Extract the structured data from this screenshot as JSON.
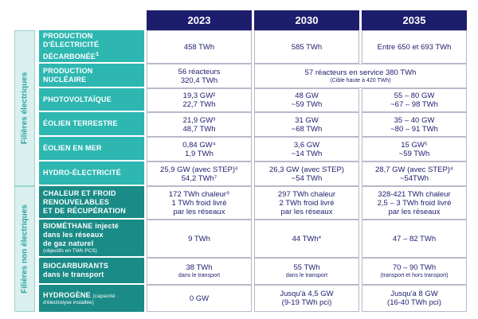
{
  "years": [
    "2023",
    "2030",
    "2035"
  ],
  "bands": {
    "elec": "Filières électriques",
    "nonelec": "Filières non électriques"
  },
  "rows": [
    {
      "label": [
        "PRODUCTION",
        "D'ÉLECTRICITÉ",
        "DÉCARBONÉE"
      ],
      "sup": "1",
      "c2023": [
        "458 TWh"
      ],
      "c2030": [
        "585 TWh"
      ],
      "c2035": [
        "Entre 650 et 693 TWh"
      ]
    },
    {
      "label": [
        "PRODUCTION",
        "NUCLÉAIRE"
      ],
      "c2023": [
        "56 réacteurs",
        "320,4 TWh"
      ],
      "span": [
        "57 réacteurs en service 380 TWh",
        "(Cible haute à 420 TWh)"
      ]
    },
    {
      "label": [
        "PHOTOVOLTAÏQUE"
      ],
      "c2023": [
        "19,3 GW²",
        "22,7 TWh"
      ],
      "c2030": [
        "48 GW",
        "~59 TWh"
      ],
      "c2035": [
        "55 – 80 GW",
        "~67 – 98 TWh"
      ]
    },
    {
      "label": [
        "ÉOLIEN TERRESTRE"
      ],
      "c2023": [
        "21,9 GW³",
        "48,7 TWh"
      ],
      "c2030": [
        "31 GW",
        "~68 TWh"
      ],
      "c2035": [
        "35 – 40 GW",
        "~80 – 91 TWh"
      ]
    },
    {
      "label": [
        "ÉOLIEN EN MER"
      ],
      "c2023": [
        "0,84 GW⁴",
        "1,9 TWh"
      ],
      "c2030": [
        "3,6 GW",
        "~14 TWh"
      ],
      "c2035": [
        "15 GW⁵",
        "~59 TWh"
      ]
    },
    {
      "label": [
        "HYDRO-ÉLECTRICITÉ"
      ],
      "c2023": [
        "25,9 GW (avec STEP)⁶",
        "54,2 TWh⁷"
      ],
      "c2030": [
        "26,3 GW (avec STEP)",
        "~54 TWh"
      ],
      "c2035": [
        "28,7 GW (avec STEP)⁸",
        "~54TWh"
      ]
    },
    {
      "label": [
        "CHALEUR ET FROID",
        "RENOUVELABLES",
        "ET DE RÉCUPÉRATION"
      ],
      "c2023": [
        "172 TWh chaleur⁹",
        "1 TWh froid livré",
        "par les réseaux"
      ],
      "c2030": [
        "297 TWh chaleur",
        "2 TWh froid livré",
        "par les réseaux"
      ],
      "c2035": [
        "328-421 TWh chaleur",
        "2,5 – 3 TWh froid livré",
        "par les réseaux"
      ]
    },
    {
      "label": [
        "BIOMÉTHANE injecté",
        "dans les réseaux",
        "de gaz naturel"
      ],
      "sub": "(objectifs en TWh PCS)",
      "c2023": [
        "9 TWh"
      ],
      "c2030": [
        "44 TWh*"
      ],
      "c2035": [
        "47 – 82 TWh"
      ]
    },
    {
      "label": [
        "BIOCARBURANTS",
        "dans le transport"
      ],
      "c2023": [
        "38 TWh",
        "dans le transport"
      ],
      "c2030": [
        "55 TWh",
        "dans le transport"
      ],
      "c2035": [
        "70 – 90 TWh",
        "(transport et hors transport)"
      ]
    },
    {
      "label": [
        "HYDROGÈNE"
      ],
      "label_suffix": "(capacité",
      "sub": "d'électrolyse installée)",
      "c2023": [
        "0 GW"
      ],
      "c2030": [
        "Jusqu'à 4,5 GW",
        "(9-19 TWh pci)"
      ],
      "c2035": [
        "Jusqu'à 8 GW",
        "(16-40 TWh pci)"
      ]
    }
  ]
}
